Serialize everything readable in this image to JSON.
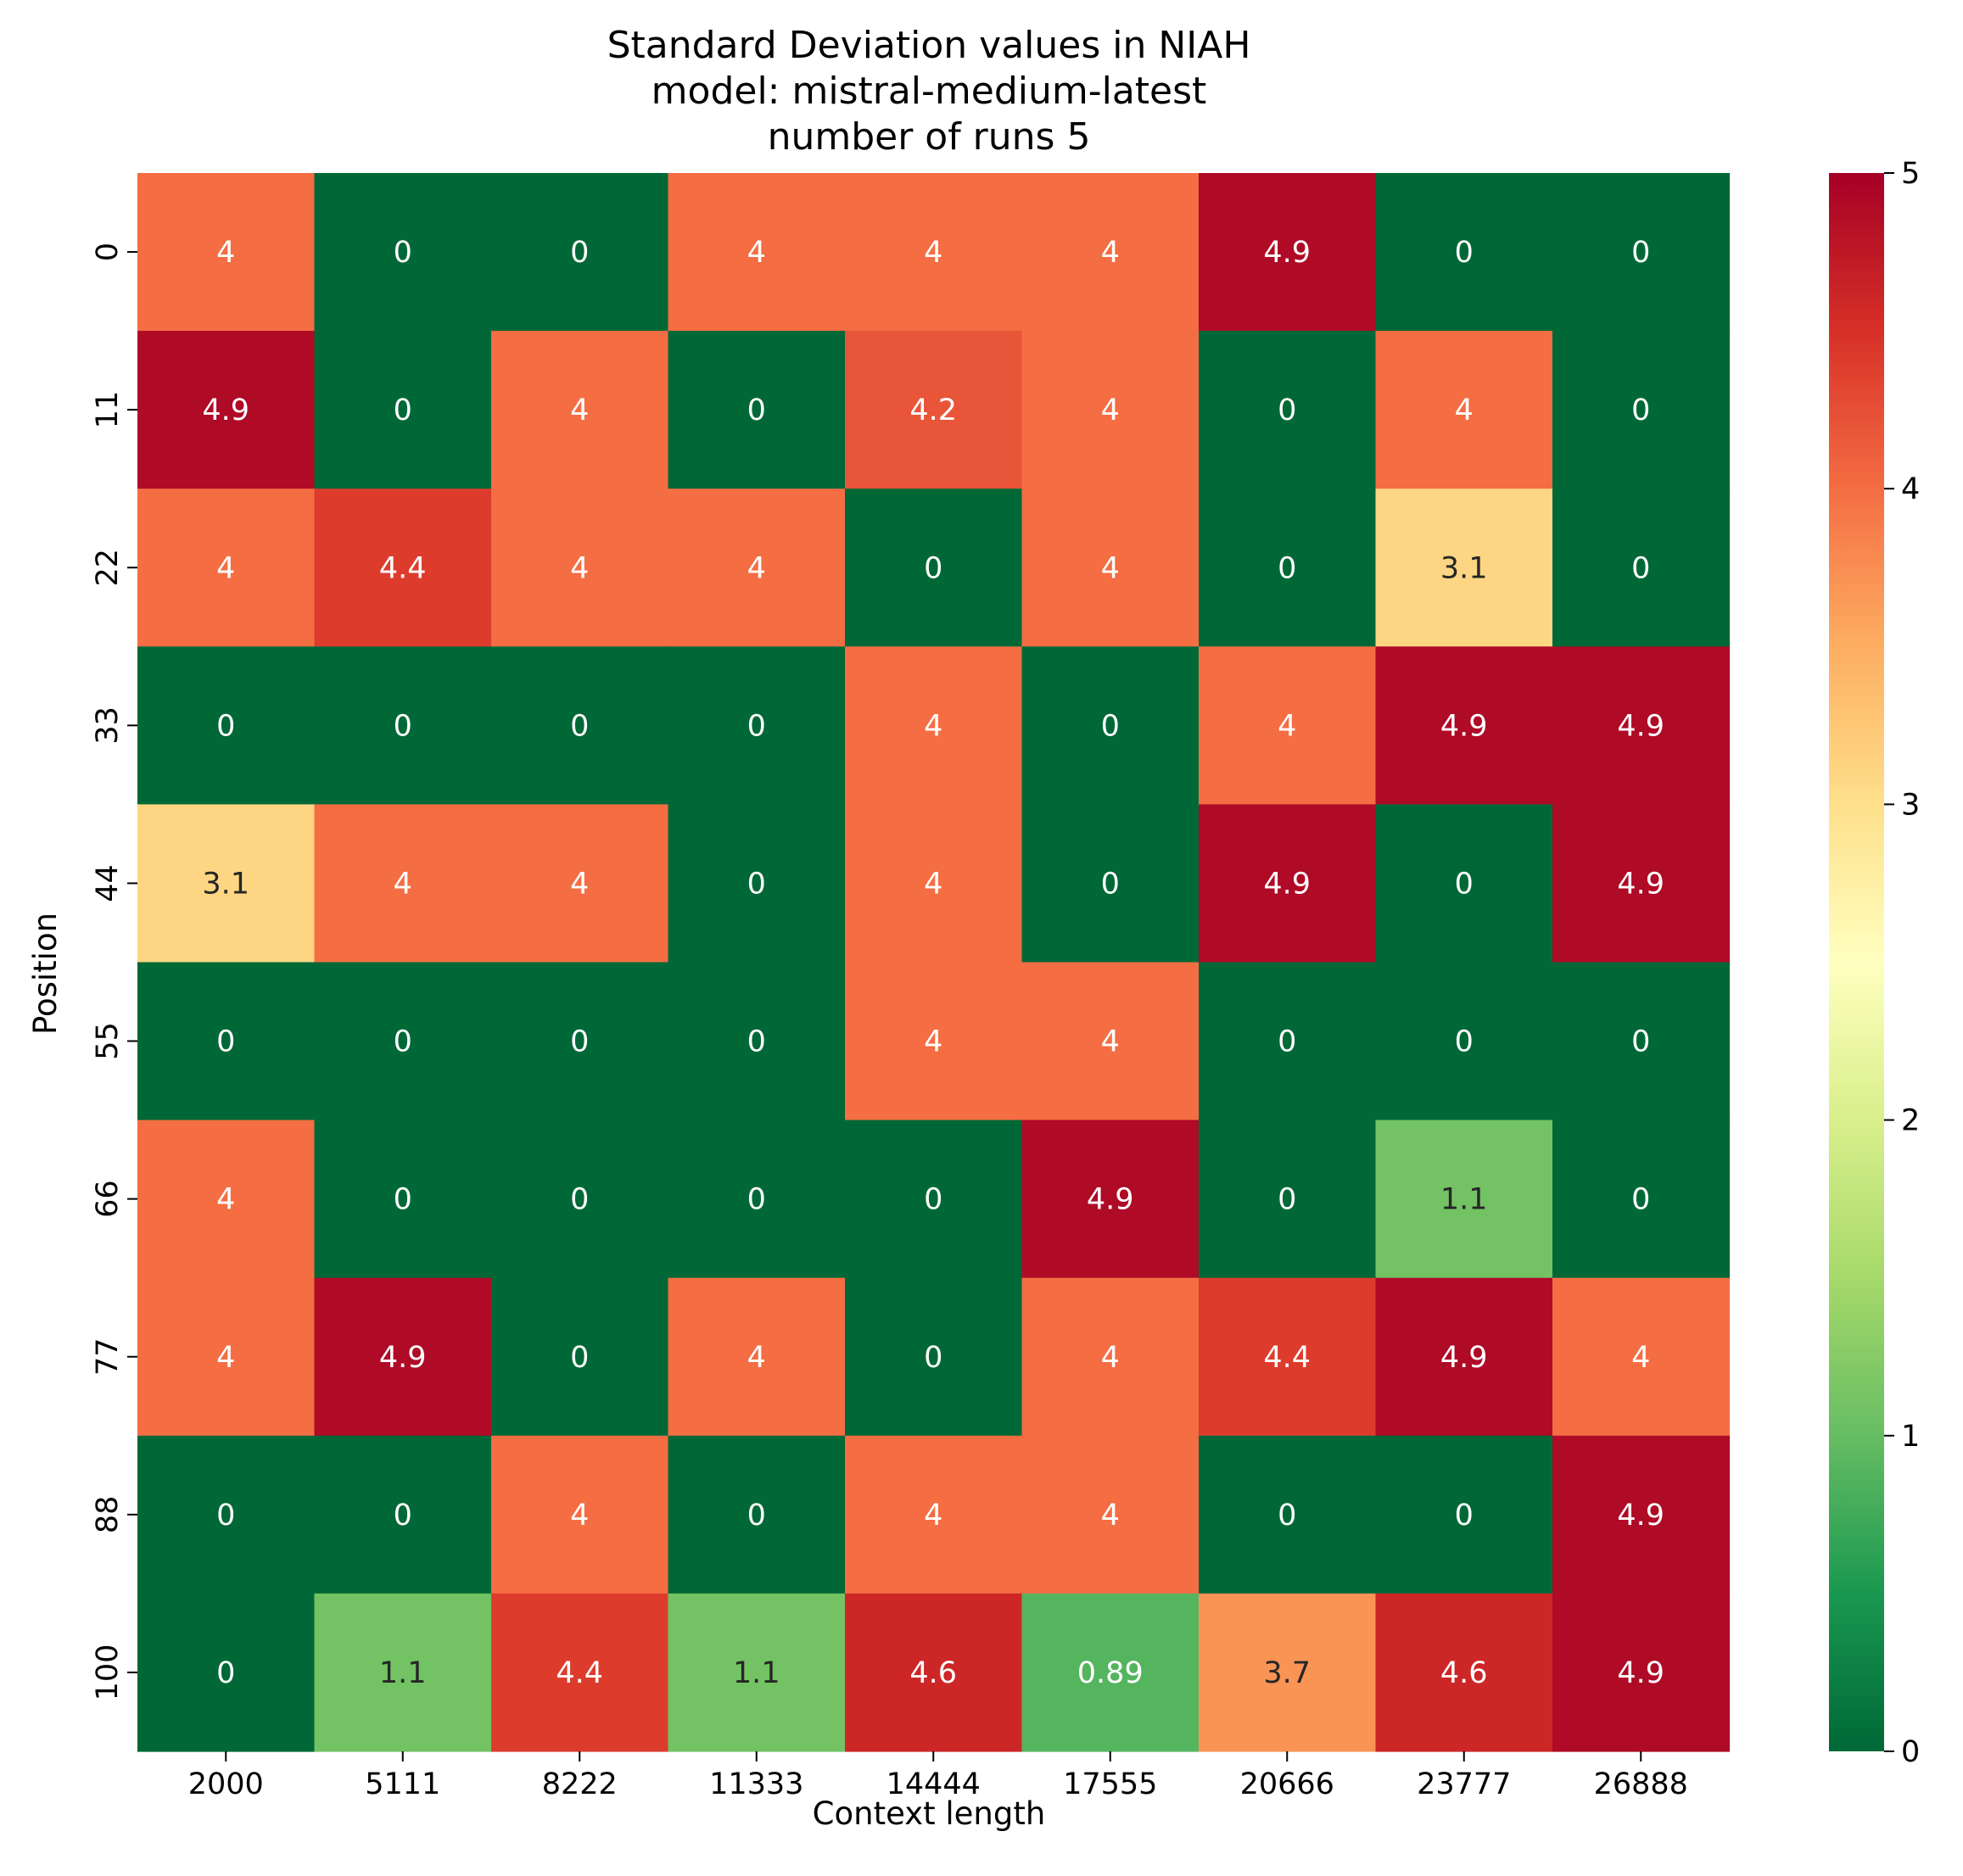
{
  "chart_data": {
    "type": "heatmap",
    "title": [
      "Standard Deviation values in NIAH",
      "model: mistral-medium-latest",
      "number of runs 5"
    ],
    "xlabel": "Context length",
    "ylabel": "Position",
    "x": [
      "2000",
      "5111",
      "8222",
      "11333",
      "14444",
      "17555",
      "20666",
      "23777",
      "26888"
    ],
    "y": [
      "0",
      "11",
      "22",
      "33",
      "44",
      "55",
      "66",
      "77",
      "88",
      "100"
    ],
    "values": [
      [
        4,
        0,
        0,
        4,
        4,
        4,
        4.9,
        0,
        0
      ],
      [
        4.9,
        0,
        4,
        0,
        4.2,
        4,
        0,
        4,
        0
      ],
      [
        4,
        4.4,
        4,
        4,
        0,
        4,
        0,
        3.1,
        0
      ],
      [
        0,
        0,
        0,
        0,
        4,
        0,
        4,
        4.9,
        4.9
      ],
      [
        3.1,
        4,
        4,
        0,
        4,
        0,
        4.9,
        0,
        4.9
      ],
      [
        0,
        0,
        0,
        0,
        4,
        4,
        0,
        0,
        0
      ],
      [
        4,
        0,
        0,
        0,
        0,
        4.9,
        0,
        1.1,
        0
      ],
      [
        4,
        4.9,
        0,
        4,
        0,
        4,
        4.4,
        4.9,
        4
      ],
      [
        0,
        0,
        4,
        0,
        4,
        4,
        0,
        0,
        4.9
      ],
      [
        0,
        1.1,
        4.4,
        1.1,
        4.6,
        0.89,
        3.7,
        4.6,
        4.9
      ]
    ],
    "colorbar": {
      "range": [
        0,
        5
      ],
      "ticks": [
        "0",
        "1",
        "2",
        "3",
        "4",
        "5"
      ]
    },
    "colormap": "RdYlGn_r",
    "grid": false
  }
}
